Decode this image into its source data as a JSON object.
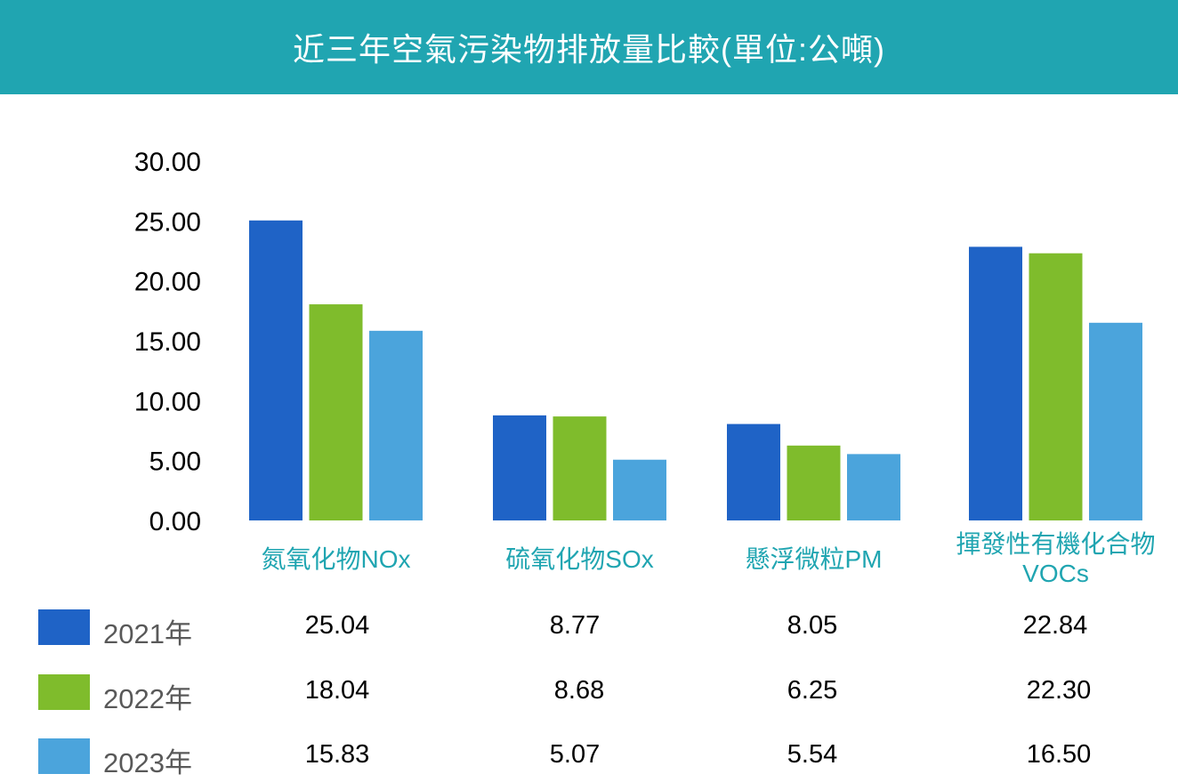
{
  "header": {
    "title": "近三年空氣污染物排放量比較(單位:公噸)"
  },
  "colors": {
    "header_bg": "#20a5b1",
    "category_label": "#20a5b1"
  },
  "chart_data": {
    "type": "bar",
    "title": "近三年空氣污染物排放量比較(單位:公噸)",
    "categories": [
      [
        "氮氧化物NOx"
      ],
      [
        "硫氧化物SOx"
      ],
      [
        "懸浮微粒PM"
      ],
      [
        "揮發性有機化合物",
        "VOCs"
      ]
    ],
    "series": [
      {
        "name": "2021年",
        "color": "#1f63c6",
        "values": [
          25.04,
          8.77,
          8.05,
          22.84
        ]
      },
      {
        "name": "2022年",
        "color": "#7fbc2c",
        "values": [
          18.04,
          8.68,
          6.25,
          22.3
        ]
      },
      {
        "name": "2023年",
        "color": "#4ba4dc",
        "values": [
          15.83,
          5.07,
          5.54,
          16.5
        ]
      }
    ],
    "ylim": [
      0,
      30
    ],
    "yticks": [
      "0.00",
      "5.00",
      "10.00",
      "15.00",
      "20.00",
      "25.00",
      "30.00"
    ],
    "grid": false,
    "legend": "bottom data table"
  },
  "table": {
    "rows": [
      {
        "label": "2021年",
        "values": [
          "25.04",
          "8.77",
          "8.05",
          "22.84"
        ]
      },
      {
        "label": "2022年",
        "values": [
          "18.04",
          "8.68",
          "6.25",
          "22.30"
        ]
      },
      {
        "label": "2023年",
        "values": [
          "15.83",
          "5.07",
          "5.54",
          "16.50"
        ]
      }
    ]
  }
}
